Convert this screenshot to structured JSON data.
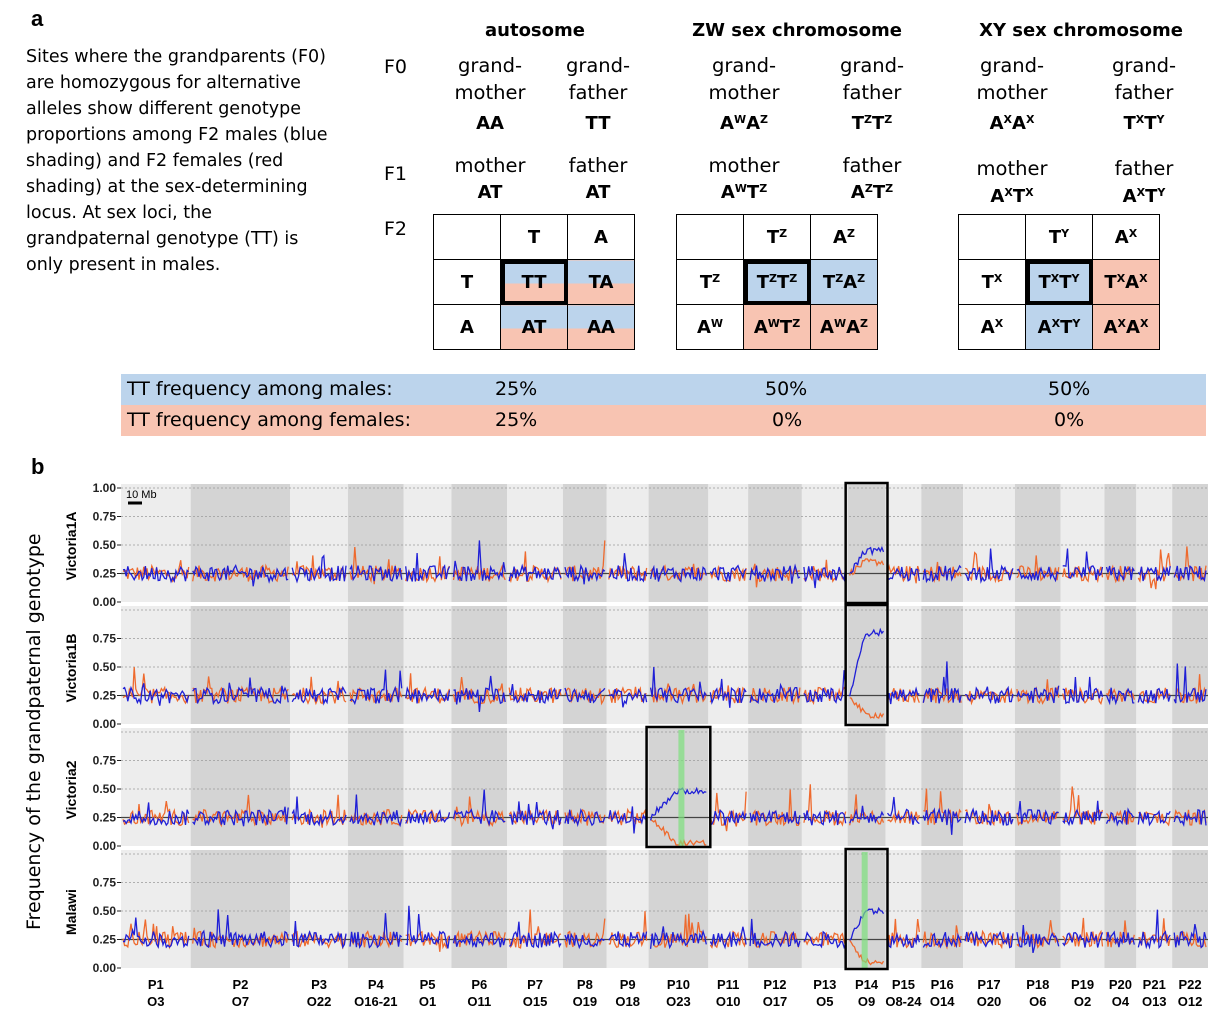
{
  "panel_a": {
    "letter": "a",
    "intro_text": "Sites where the grandparents (F0) are homozygous for alternative alleles show different genotype proportions among F2 males (blue shading) and F2 females (red shading) at the sex-determining locus. At sex loci, the grandpaternal genotype (TT) is only present in males.",
    "gen_labels": [
      "F0",
      "F1",
      "F2"
    ],
    "columns": [
      {
        "title": "autosome",
        "f0": [
          {
            "role": "grand-\nmother",
            "genotype_html": "AA"
          },
          {
            "role": "grand-\nfather",
            "genotype_html": "TT"
          }
        ],
        "f1": [
          {
            "role": "mother",
            "genotype_html": "AT"
          },
          {
            "role": "father",
            "genotype_html": "AT"
          }
        ],
        "punnett": [
          [
            "",
            "T",
            "A"
          ],
          [
            "T",
            "TT",
            "TA"
          ],
          [
            "A",
            "AT",
            "AA"
          ]
        ]
      },
      {
        "title": "ZW sex chromosome",
        "f0": [
          {
            "role": "grand-\nmother",
            "genotype_html": "A<sup>W</sup>A<sup>Z</sup>"
          },
          {
            "role": "grand-\nfather",
            "genotype_html": "T<sup>Z</sup>T<sup>Z</sup>"
          }
        ],
        "f1": [
          {
            "role": "mother",
            "genotype_html": "A<sup>W</sup>T<sup>Z</sup>"
          },
          {
            "role": "father",
            "genotype_html": "A<sup>Z</sup>T<sup>Z</sup>"
          }
        ],
        "punnett": [
          [
            "",
            "T<sup>Z</sup>",
            "A<sup>Z</sup>"
          ],
          [
            "T<sup>Z</sup>",
            "T<sup>Z</sup>T<sup>Z</sup>",
            "T<sup>Z</sup>A<sup>Z</sup>"
          ],
          [
            "A<sup>W</sup>",
            "A<sup>W</sup>T<sup>Z</sup>",
            "A<sup>W</sup>A<sup>Z</sup>"
          ]
        ]
      },
      {
        "title": "XY sex chromosome",
        "f0": [
          {
            "role": "grand-\nmother",
            "genotype_html": "A<sup>X</sup>A<sup>X</sup>"
          },
          {
            "role": "grand-\nfather",
            "genotype_html": "T<sup>X</sup>T<sup>Y</sup>"
          }
        ],
        "f1": [
          {
            "role": "mother",
            "genotype_html": "A<sup>X</sup>T<sup>X</sup>"
          },
          {
            "role": "father",
            "genotype_html": "A<sup>X</sup>T<sup>Y</sup>"
          }
        ],
        "punnett": [
          [
            "",
            "T<sup>Y</sup>",
            "A<sup>X</sup>"
          ],
          [
            "T<sup>X</sup>",
            "T<sup>X</sup>T<sup>Y</sup>",
            "T<sup>X</sup>A<sup>X</sup>"
          ],
          [
            "A<sup>X</sup>",
            "A<sup>X</sup>T<sup>Y</sup>",
            "A<sup>X</sup>A<sup>X</sup>"
          ]
        ]
      }
    ],
    "frequency_rows": [
      {
        "label": "TT frequency among males:",
        "values": [
          "25%",
          "50%",
          "50%"
        ],
        "color": "#bcd4ec"
      },
      {
        "label": "TT frequency among females:",
        "values": [
          "25%",
          "0%",
          "0%"
        ],
        "color": "#f8c4b2"
      }
    ]
  },
  "panel_b": {
    "letter": "b",
    "ylabel": "Frequency of the grandpaternal genotype",
    "scale_bar": "10 Mb",
    "colors": {
      "male": "#1f1fd6",
      "female": "#ee6a2e",
      "sex_locus": "#7ee07e",
      "band_dark": "#d4d4d4",
      "band_light": "#ededed"
    }
  },
  "chart_data": {
    "type": "line",
    "yticks": [
      "1.00",
      "0.75",
      "0.50",
      "0.25",
      "0.00"
    ],
    "ylim": [
      0,
      1
    ],
    "reference_line": 0.25,
    "panels": [
      {
        "name": "Victoria1A",
        "highlight_groups": [
          13
        ],
        "male_peak": 0.45,
        "female_peak": 0.35
      },
      {
        "name": "Victoria1B",
        "highlight_groups": [
          13
        ],
        "male_peak": 0.8,
        "female_peak": 0.08
      },
      {
        "name": "Victoria2",
        "highlight_groups": [
          9
        ],
        "male_peak": 0.48,
        "female_peak": 0.02
      },
      {
        "name": "Malawi",
        "highlight_groups": [
          13
        ],
        "male_peak": 0.5,
        "female_peak": 0.05
      }
    ],
    "linkage_groups": [
      {
        "p": "P1",
        "o": "O3",
        "start": 0.0,
        "end": 3.5
      },
      {
        "p": "P2",
        "o": "O7",
        "start": 3.5,
        "end": 8.5
      },
      {
        "p": "P3",
        "o": "O22",
        "start": 8.5,
        "end": 11.4
      },
      {
        "p": "P4",
        "o": "O16-21",
        "start": 11.4,
        "end": 14.2
      },
      {
        "p": "P5",
        "o": "O1",
        "start": 14.2,
        "end": 16.6
      },
      {
        "p": "P6",
        "o": "O11",
        "start": 16.6,
        "end": 19.4
      },
      {
        "p": "P7",
        "o": "O15",
        "start": 19.4,
        "end": 22.2
      },
      {
        "p": "P8",
        "o": "O19",
        "start": 22.2,
        "end": 24.4
      },
      {
        "p": "P9",
        "o": "O18",
        "start": 24.4,
        "end": 26.5
      },
      {
        "p": "P10",
        "o": "O23",
        "start": 26.5,
        "end": 29.5
      },
      {
        "p": "P11",
        "o": "O10",
        "start": 29.5,
        "end": 31.5
      },
      {
        "p": "P12",
        "o": "O17",
        "start": 31.5,
        "end": 34.2
      },
      {
        "p": "P13",
        "o": "O5",
        "start": 34.2,
        "end": 36.5
      },
      {
        "p": "P14",
        "o": "O9",
        "start": 36.5,
        "end": 38.4
      },
      {
        "p": "P15",
        "o": "O8-24",
        "start": 38.4,
        "end": 40.2
      },
      {
        "p": "P16",
        "o": "O14",
        "start": 40.2,
        "end": 42.3
      },
      {
        "p": "P17",
        "o": "O20",
        "start": 42.3,
        "end": 44.9
      },
      {
        "p": "P18",
        "o": "O6",
        "start": 44.9,
        "end": 47.2
      },
      {
        "p": "P19",
        "o": "O2",
        "start": 47.2,
        "end": 49.4
      },
      {
        "p": "P20",
        "o": "O4",
        "start": 49.4,
        "end": 51.0
      },
      {
        "p": "P21",
        "o": "O13",
        "start": 51.0,
        "end": 52.8
      },
      {
        "p": "P22",
        "o": "O12",
        "start": 52.8,
        "end": 54.6
      }
    ]
  }
}
